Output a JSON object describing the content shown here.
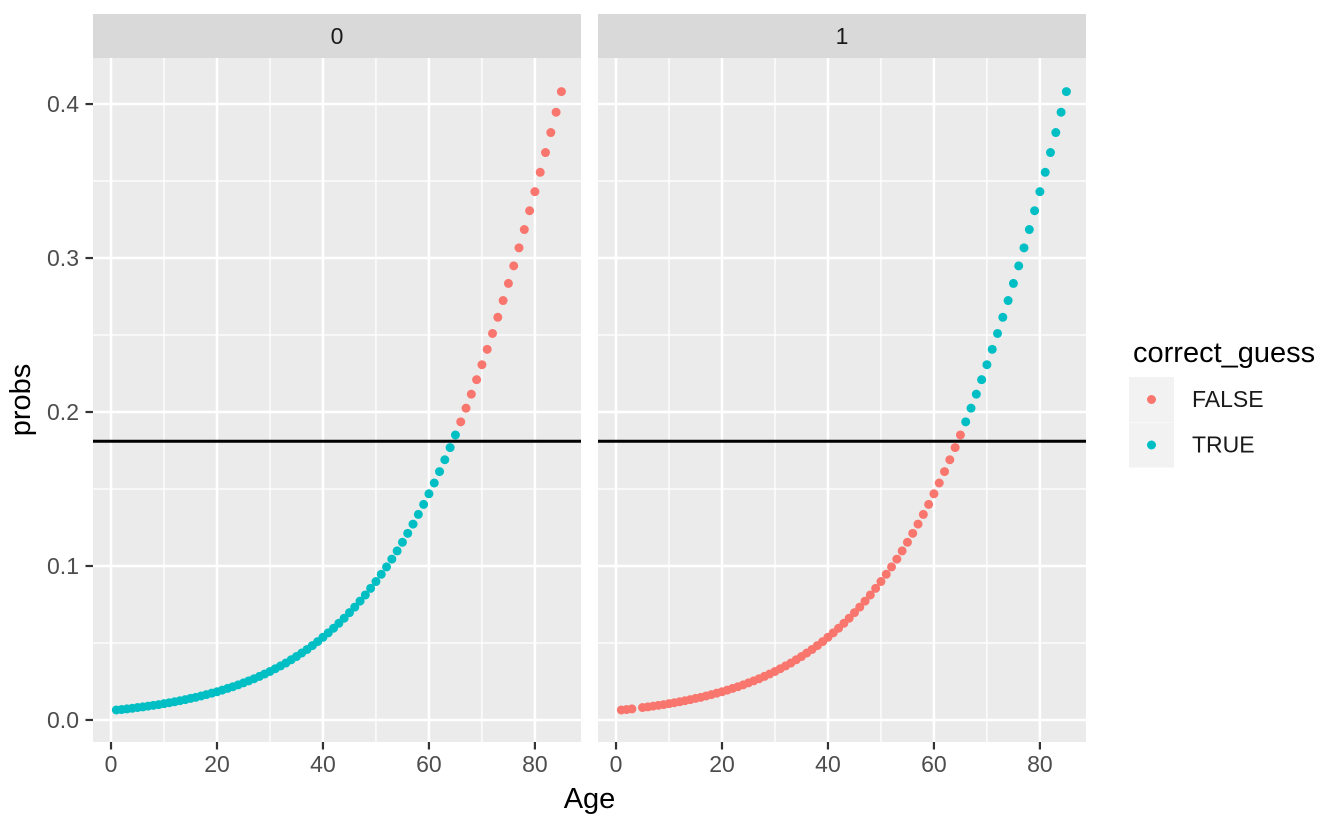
{
  "chart_data": {
    "type": "scatter",
    "xlabel": "Age",
    "ylabel": "probs",
    "x_ticks": {
      "values": [
        0,
        20,
        40,
        60,
        80
      ],
      "labels": [
        "0",
        "20",
        "40",
        "60",
        "80"
      ]
    },
    "x_minor_ticks": [
      10,
      30,
      50,
      70
    ],
    "y_ticks": {
      "values": [
        0.0,
        0.1,
        0.2,
        0.3,
        0.4
      ],
      "labels": [
        "0.0",
        "0.1",
        "0.2",
        "0.3",
        "0.4"
      ]
    },
    "y_minor_ticks": [
      0.05,
      0.15,
      0.25,
      0.35
    ],
    "xlim": [
      -3.4,
      88.7
    ],
    "ylim": [
      -0.0143,
      0.4299
    ],
    "grid": true,
    "hline_y": 0.181,
    "legend": {
      "title": "correct_guess",
      "position": "right",
      "entries": [
        {
          "label": "FALSE",
          "color": "#F8766D"
        },
        {
          "label": "TRUE",
          "color": "#00BFC4"
        }
      ]
    },
    "facets": [
      {
        "label": "0",
        "points": [
          [
            1,
            0.0065,
            "TRUE"
          ],
          [
            2,
            0.0068,
            "TRUE"
          ],
          [
            3,
            0.0072,
            "TRUE"
          ],
          [
            4,
            0.0076,
            "TRUE"
          ],
          [
            5,
            0.0081,
            "TRUE"
          ],
          [
            6,
            0.0085,
            "TRUE"
          ],
          [
            7,
            0.009,
            "TRUE"
          ],
          [
            8,
            0.0095,
            "TRUE"
          ],
          [
            9,
            0.01,
            "TRUE"
          ],
          [
            10,
            0.0106,
            "TRUE"
          ],
          [
            11,
            0.0112,
            "TRUE"
          ],
          [
            12,
            0.0118,
            "TRUE"
          ],
          [
            13,
            0.0125,
            "TRUE"
          ],
          [
            14,
            0.0132,
            "TRUE"
          ],
          [
            15,
            0.014,
            "TRUE"
          ],
          [
            16,
            0.0147,
            "TRUE"
          ],
          [
            17,
            0.0156,
            "TRUE"
          ],
          [
            18,
            0.0165,
            "TRUE"
          ],
          [
            19,
            0.0174,
            "TRUE"
          ],
          [
            20,
            0.0183,
            "TRUE"
          ],
          [
            21,
            0.0194,
            "TRUE"
          ],
          [
            22,
            0.0205,
            "TRUE"
          ],
          [
            23,
            0.0216,
            "TRUE"
          ],
          [
            24,
            0.0228,
            "TRUE"
          ],
          [
            25,
            0.0241,
            "TRUE"
          ],
          [
            26,
            0.0254,
            "TRUE"
          ],
          [
            27,
            0.0268,
            "TRUE"
          ],
          [
            28,
            0.0283,
            "TRUE"
          ],
          [
            29,
            0.0299,
            "TRUE"
          ],
          [
            30,
            0.0315,
            "TRUE"
          ],
          [
            31,
            0.0333,
            "TRUE"
          ],
          [
            32,
            0.0351,
            "TRUE"
          ],
          [
            33,
            0.037,
            "TRUE"
          ],
          [
            34,
            0.0391,
            "TRUE"
          ],
          [
            35,
            0.0412,
            "TRUE"
          ],
          [
            36,
            0.0435,
            "TRUE"
          ],
          [
            37,
            0.0458,
            "TRUE"
          ],
          [
            38,
            0.0483,
            "TRUE"
          ],
          [
            39,
            0.0509,
            "TRUE"
          ],
          [
            40,
            0.0537,
            "TRUE"
          ],
          [
            41,
            0.0566,
            "TRUE"
          ],
          [
            42,
            0.0596,
            "TRUE"
          ],
          [
            43,
            0.0628,
            "TRUE"
          ],
          [
            44,
            0.0661,
            "TRUE"
          ],
          [
            45,
            0.0697,
            "TRUE"
          ],
          [
            46,
            0.0733,
            "TRUE"
          ],
          [
            47,
            0.0772,
            "TRUE"
          ],
          [
            48,
            0.0812,
            "TRUE"
          ],
          [
            49,
            0.0855,
            "TRUE"
          ],
          [
            50,
            0.0899,
            "TRUE"
          ],
          [
            51,
            0.0946,
            "TRUE"
          ],
          [
            52,
            0.0994,
            "TRUE"
          ],
          [
            53,
            0.1045,
            "TRUE"
          ],
          [
            54,
            0.1098,
            "TRUE"
          ],
          [
            55,
            0.1154,
            "TRUE"
          ],
          [
            56,
            0.1212,
            "TRUE"
          ],
          [
            57,
            0.1272,
            "TRUE"
          ],
          [
            58,
            0.1335,
            "TRUE"
          ],
          [
            59,
            0.14,
            "TRUE"
          ],
          [
            60,
            0.1469,
            "TRUE"
          ],
          [
            61,
            0.1539,
            "TRUE"
          ],
          [
            62,
            0.1613,
            "TRUE"
          ],
          [
            63,
            0.169,
            "TRUE"
          ],
          [
            64,
            0.1769,
            "TRUE"
          ],
          [
            65,
            0.1851,
            "TRUE"
          ],
          [
            66,
            0.1936,
            "FALSE"
          ],
          [
            67,
            0.2025,
            "FALSE"
          ],
          [
            68,
            0.2116,
            "FALSE"
          ],
          [
            69,
            0.221,
            "FALSE"
          ],
          [
            70,
            0.2307,
            "FALSE"
          ],
          [
            71,
            0.2407,
            "FALSE"
          ],
          [
            72,
            0.251,
            "FALSE"
          ],
          [
            73,
            0.2615,
            "FALSE"
          ],
          [
            74,
            0.2724,
            "FALSE"
          ],
          [
            75,
            0.2835,
            "FALSE"
          ],
          [
            76,
            0.2949,
            "FALSE"
          ],
          [
            77,
            0.3066,
            "FALSE"
          ],
          [
            78,
            0.3185,
            "FALSE"
          ],
          [
            79,
            0.3307,
            "FALSE"
          ],
          [
            80,
            0.3431,
            "FALSE"
          ],
          [
            81,
            0.3557,
            "FALSE"
          ],
          [
            82,
            0.3685,
            "FALSE"
          ],
          [
            83,
            0.3815,
            "FALSE"
          ],
          [
            84,
            0.3947,
            "FALSE"
          ],
          [
            85,
            0.4081,
            "FALSE"
          ]
        ]
      },
      {
        "label": "1",
        "points": [
          [
            1,
            0.0065,
            "FALSE"
          ],
          [
            2,
            0.0068,
            "FALSE"
          ],
          [
            3,
            0.0072,
            "FALSE"
          ],
          [
            5,
            0.0081,
            "FALSE"
          ],
          [
            6,
            0.0085,
            "FALSE"
          ],
          [
            7,
            0.009,
            "FALSE"
          ],
          [
            8,
            0.0095,
            "FALSE"
          ],
          [
            9,
            0.01,
            "FALSE"
          ],
          [
            10,
            0.0106,
            "FALSE"
          ],
          [
            11,
            0.0112,
            "FALSE"
          ],
          [
            12,
            0.0118,
            "FALSE"
          ],
          [
            13,
            0.0125,
            "FALSE"
          ],
          [
            14,
            0.0132,
            "FALSE"
          ],
          [
            15,
            0.014,
            "FALSE"
          ],
          [
            16,
            0.0147,
            "FALSE"
          ],
          [
            17,
            0.0156,
            "FALSE"
          ],
          [
            18,
            0.0165,
            "FALSE"
          ],
          [
            19,
            0.0174,
            "FALSE"
          ],
          [
            20,
            0.0183,
            "FALSE"
          ],
          [
            21,
            0.0194,
            "FALSE"
          ],
          [
            22,
            0.0205,
            "FALSE"
          ],
          [
            23,
            0.0216,
            "FALSE"
          ],
          [
            24,
            0.0228,
            "FALSE"
          ],
          [
            25,
            0.0241,
            "FALSE"
          ],
          [
            26,
            0.0254,
            "FALSE"
          ],
          [
            27,
            0.0268,
            "FALSE"
          ],
          [
            28,
            0.0283,
            "FALSE"
          ],
          [
            29,
            0.0299,
            "FALSE"
          ],
          [
            30,
            0.0315,
            "FALSE"
          ],
          [
            31,
            0.0333,
            "FALSE"
          ],
          [
            32,
            0.0351,
            "FALSE"
          ],
          [
            33,
            0.037,
            "FALSE"
          ],
          [
            34,
            0.0391,
            "FALSE"
          ],
          [
            35,
            0.0412,
            "FALSE"
          ],
          [
            36,
            0.0435,
            "FALSE"
          ],
          [
            37,
            0.0458,
            "FALSE"
          ],
          [
            38,
            0.0483,
            "FALSE"
          ],
          [
            39,
            0.0509,
            "FALSE"
          ],
          [
            40,
            0.0537,
            "FALSE"
          ],
          [
            41,
            0.0566,
            "FALSE"
          ],
          [
            42,
            0.0596,
            "FALSE"
          ],
          [
            43,
            0.0628,
            "FALSE"
          ],
          [
            44,
            0.0661,
            "FALSE"
          ],
          [
            45,
            0.0697,
            "FALSE"
          ],
          [
            46,
            0.0733,
            "FALSE"
          ],
          [
            47,
            0.0772,
            "FALSE"
          ],
          [
            48,
            0.0812,
            "FALSE"
          ],
          [
            49,
            0.0855,
            "FALSE"
          ],
          [
            50,
            0.0899,
            "FALSE"
          ],
          [
            51,
            0.0946,
            "FALSE"
          ],
          [
            52,
            0.0994,
            "FALSE"
          ],
          [
            53,
            0.1045,
            "FALSE"
          ],
          [
            54,
            0.1098,
            "FALSE"
          ],
          [
            55,
            0.1154,
            "FALSE"
          ],
          [
            56,
            0.1212,
            "FALSE"
          ],
          [
            57,
            0.1272,
            "FALSE"
          ],
          [
            58,
            0.1335,
            "FALSE"
          ],
          [
            59,
            0.14,
            "FALSE"
          ],
          [
            60,
            0.1469,
            "FALSE"
          ],
          [
            61,
            0.1539,
            "FALSE"
          ],
          [
            62,
            0.1613,
            "FALSE"
          ],
          [
            63,
            0.169,
            "FALSE"
          ],
          [
            64,
            0.1769,
            "FALSE"
          ],
          [
            65,
            0.1851,
            "FALSE"
          ],
          [
            66,
            0.1936,
            "TRUE"
          ],
          [
            67,
            0.2025,
            "TRUE"
          ],
          [
            68,
            0.2116,
            "TRUE"
          ],
          [
            69,
            0.221,
            "TRUE"
          ],
          [
            70,
            0.2307,
            "TRUE"
          ],
          [
            71,
            0.2407,
            "TRUE"
          ],
          [
            72,
            0.251,
            "TRUE"
          ],
          [
            73,
            0.2615,
            "TRUE"
          ],
          [
            74,
            0.2724,
            "TRUE"
          ],
          [
            75,
            0.2835,
            "TRUE"
          ],
          [
            76,
            0.2949,
            "TRUE"
          ],
          [
            77,
            0.3066,
            "TRUE"
          ],
          [
            78,
            0.3185,
            "TRUE"
          ],
          [
            79,
            0.3307,
            "TRUE"
          ],
          [
            80,
            0.3431,
            "TRUE"
          ],
          [
            81,
            0.3557,
            "TRUE"
          ],
          [
            82,
            0.3685,
            "TRUE"
          ],
          [
            83,
            0.3815,
            "TRUE"
          ],
          [
            84,
            0.3947,
            "TRUE"
          ],
          [
            85,
            0.4081,
            "TRUE"
          ]
        ]
      }
    ]
  },
  "colors": {
    "background": "#FFFFFF",
    "panel_bg": "#EBEBEB",
    "strip_bg": "#D9D9D9",
    "grid": "#FFFFFF",
    "hline": "#000000",
    "axis_tick": "#333333",
    "legend_key_bg": "#F2F2F2",
    "false_series": "#F8766D",
    "true_series": "#00BFC4"
  }
}
